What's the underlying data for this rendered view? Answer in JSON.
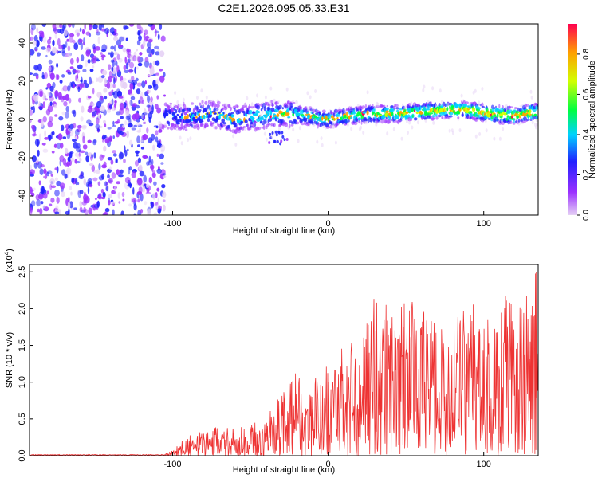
{
  "figure": {
    "title": "C2E1.2026.095.05.33.E31"
  },
  "chart_data": [
    {
      "type": "heatmap",
      "xlabel": "Height of straight line (km)",
      "ylabel": "Frequency (Hz)",
      "xlim": [
        -192,
        135
      ],
      "ylim": [
        -50,
        50
      ],
      "x_ticks": [
        -100,
        0,
        100
      ],
      "y_ticks": [
        -40,
        -20,
        0,
        20,
        40
      ],
      "x_tick_labels": [
        "-100",
        "0",
        "100"
      ],
      "y_tick_labels": [
        "-40",
        "-20",
        "0",
        "20",
        "40"
      ],
      "grid": false,
      "noise_region": {
        "x_start": -192,
        "x_end": -105,
        "freq_min": -50,
        "freq_max": 50
      },
      "ridge": [
        {
          "x": -105,
          "f": 2
        },
        {
          "x": -90,
          "f": 1
        },
        {
          "x": -75,
          "f": 3
        },
        {
          "x": -60,
          "f": 0
        },
        {
          "x": -45,
          "f": 2
        },
        {
          "x": -30,
          "f": 3
        },
        {
          "x": -15,
          "f": 2
        },
        {
          "x": 0,
          "f": 0
        },
        {
          "x": 15,
          "f": 2
        },
        {
          "x": 30,
          "f": 3
        },
        {
          "x": 45,
          "f": 3
        },
        {
          "x": 60,
          "f": 4
        },
        {
          "x": 75,
          "f": 5
        },
        {
          "x": 90,
          "f": 5
        },
        {
          "x": 105,
          "f": 3
        },
        {
          "x": 120,
          "f": 2
        },
        {
          "x": 135,
          "f": 4
        }
      ],
      "colorbar": {
        "label": "Normalized spectral amplitude",
        "range": [
          0,
          0.95
        ],
        "ticks": [
          0.0,
          0.2,
          0.4,
          0.6,
          0.8
        ],
        "tick_labels": [
          "0.0",
          "0.2",
          "0.4",
          "0.6",
          "0.8"
        ],
        "colors": [
          "#e6d2f5",
          "#9b30ff",
          "#2020ff",
          "#00d2ff",
          "#00ff40",
          "#d2ff00",
          "#ffa000",
          "#ff0050"
        ]
      }
    },
    {
      "type": "line",
      "xlabel": "Height of straight line (km)",
      "ylabel": "SNR (10 * v/v)",
      "y_multiplier": "(x10",
      "y_multiplier_exp": "4",
      "y_multiplier_close": ")",
      "xlim": [
        -192,
        135
      ],
      "ylim": [
        0,
        2.6
      ],
      "x_ticks": [
        -100,
        0,
        100
      ],
      "y_ticks": [
        0.0,
        0.5,
        1.0,
        1.5,
        2.0,
        2.5
      ],
      "x_tick_labels": [
        "-100",
        "0",
        "100"
      ],
      "y_tick_labels": [
        "0.0",
        "0.5",
        "1.0",
        "1.5",
        "2.0",
        "2.5"
      ],
      "color": "#ee3333",
      "series": [
        {
          "name": "SNR",
          "envelope": [
            {
              "x": -192,
              "y": 0.01
            },
            {
              "x": -105,
              "y": 0.02
            },
            {
              "x": -100,
              "y": 0.08
            },
            {
              "x": -90,
              "y": 0.28
            },
            {
              "x": -80,
              "y": 0.35
            },
            {
              "x": -70,
              "y": 0.42
            },
            {
              "x": -55,
              "y": 0.42
            },
            {
              "x": -40,
              "y": 0.5
            },
            {
              "x": -30,
              "y": 0.9
            },
            {
              "x": -20,
              "y": 1.2
            },
            {
              "x": -15,
              "y": 0.75
            },
            {
              "x": -5,
              "y": 1.2
            },
            {
              "x": 0,
              "y": 1.25
            },
            {
              "x": 10,
              "y": 1.5
            },
            {
              "x": 20,
              "y": 1.65
            },
            {
              "x": 30,
              "y": 2.2
            },
            {
              "x": 40,
              "y": 2.0
            },
            {
              "x": 50,
              "y": 2.2
            },
            {
              "x": 60,
              "y": 2.0
            },
            {
              "x": 70,
              "y": 1.95
            },
            {
              "x": 80,
              "y": 1.85
            },
            {
              "x": 90,
              "y": 2.05
            },
            {
              "x": 100,
              "y": 2.1
            },
            {
              "x": 110,
              "y": 1.9
            },
            {
              "x": 115,
              "y": 2.3
            },
            {
              "x": 125,
              "y": 2.0
            },
            {
              "x": 130,
              "y": 2.45
            },
            {
              "x": 135,
              "y": 2.55
            }
          ]
        }
      ]
    }
  ]
}
